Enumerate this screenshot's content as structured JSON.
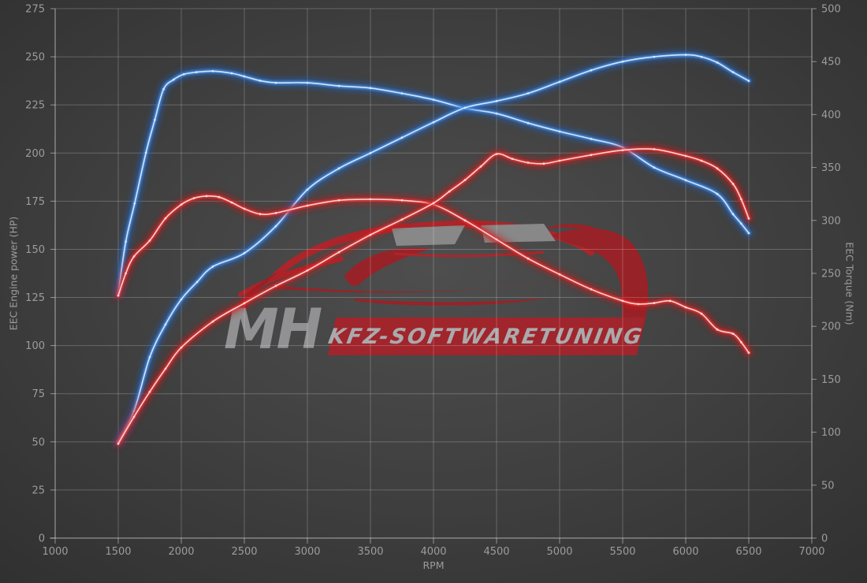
{
  "colors": {
    "background_center": "#4e4e4e",
    "background_edge": "#2d2d2d",
    "grid": "rgba(255,255,255,0.22)",
    "axis": "rgba(255,255,255,0.45)",
    "tick_label": "#9c9c9c",
    "axis_title": "#9c9c9c",
    "blue_glow": "#1e62c8",
    "blue_line": "#4a8fe0",
    "blue_core": "#d9eaff",
    "red_glow": "#c81616",
    "red_line": "#e23434",
    "red_core": "#ffdada"
  },
  "watermark": {
    "mh_text": "MH",
    "band_text": "KFZ-SOFTWARETUNING",
    "mh_color": "#98989a",
    "band_color": "#a8232a",
    "band_text_color": "#b3b3b5",
    "car_body_color": "#9e2026",
    "car_stroke_color": "#b42329",
    "window_color": "#8e8e8e"
  },
  "chart_data": {
    "type": "line",
    "title": "",
    "xlabel": "RPM",
    "ylabel_left": "EEC Engine power (HP)",
    "ylabel_right": "EEC Torque (Nm)",
    "x_range": [
      1000,
      7000
    ],
    "x_ticks": [
      1000,
      1500,
      2000,
      2500,
      3000,
      3500,
      4000,
      4500,
      5000,
      5500,
      6000,
      6500,
      7000
    ],
    "y_left_range": [
      0,
      275
    ],
    "y_left_ticks": [
      0,
      25,
      50,
      75,
      100,
      125,
      150,
      175,
      200,
      225,
      250,
      275
    ],
    "y_right_range": [
      0,
      500
    ],
    "y_right_ticks": [
      0,
      50,
      100,
      150,
      200,
      250,
      300,
      350,
      400,
      450,
      500
    ],
    "grid": true,
    "legend": "none",
    "series": [
      {
        "name": "blue_torque",
        "axis": "right",
        "unit": "Nm",
        "color_key": "blue",
        "points": [
          [
            1500,
            231
          ],
          [
            1560,
            280
          ],
          [
            1630,
            316
          ],
          [
            1720,
            364
          ],
          [
            1790,
            395
          ],
          [
            1860,
            424
          ],
          [
            1940,
            433
          ],
          [
            2020,
            438
          ],
          [
            2120,
            440
          ],
          [
            2250,
            441
          ],
          [
            2400,
            439
          ],
          [
            2500,
            436
          ],
          [
            2625,
            432
          ],
          [
            2750,
            430
          ],
          [
            3000,
            430
          ],
          [
            3250,
            427
          ],
          [
            3500,
            425
          ],
          [
            3750,
            420
          ],
          [
            4000,
            414
          ],
          [
            4250,
            406
          ],
          [
            4500,
            401
          ],
          [
            4750,
            392
          ],
          [
            5000,
            384
          ],
          [
            5250,
            377
          ],
          [
            5500,
            369
          ],
          [
            5750,
            350
          ],
          [
            6000,
            338
          ],
          [
            6250,
            325
          ],
          [
            6375,
            306
          ],
          [
            6440,
            297
          ],
          [
            6500,
            288
          ]
        ]
      },
      {
        "name": "blue_power",
        "axis": "left",
        "unit": "HP",
        "color_key": "blue",
        "points": [
          [
            1500,
            50
          ],
          [
            1625,
            66
          ],
          [
            1750,
            94
          ],
          [
            1875,
            111
          ],
          [
            2000,
            124
          ],
          [
            2125,
            133
          ],
          [
            2250,
            141
          ],
          [
            2500,
            148
          ],
          [
            2750,
            162
          ],
          [
            3000,
            181
          ],
          [
            3250,
            192
          ],
          [
            3500,
            200
          ],
          [
            3750,
            208
          ],
          [
            4000,
            216
          ],
          [
            4250,
            223.5
          ],
          [
            4500,
            227
          ],
          [
            4750,
            231
          ],
          [
            5000,
            237
          ],
          [
            5250,
            243
          ],
          [
            5500,
            247.5
          ],
          [
            5750,
            250
          ],
          [
            6000,
            251
          ],
          [
            6125,
            250
          ],
          [
            6250,
            247
          ],
          [
            6375,
            242
          ],
          [
            6500,
            237.5
          ]
        ]
      },
      {
        "name": "red_torque",
        "axis": "right",
        "unit": "Nm",
        "color_key": "red",
        "points": [
          [
            1500,
            229
          ],
          [
            1560,
            250
          ],
          [
            1625,
            266
          ],
          [
            1750,
            281
          ],
          [
            1875,
            302
          ],
          [
            2000,
            315
          ],
          [
            2100,
            321
          ],
          [
            2200,
            323
          ],
          [
            2300,
            322
          ],
          [
            2400,
            317
          ],
          [
            2500,
            311
          ],
          [
            2625,
            306
          ],
          [
            2750,
            307
          ],
          [
            3000,
            314
          ],
          [
            3250,
            319
          ],
          [
            3500,
            320
          ],
          [
            3750,
            319
          ],
          [
            4000,
            315
          ],
          [
            4250,
            300
          ],
          [
            4500,
            282
          ],
          [
            4750,
            264
          ],
          [
            5000,
            249
          ],
          [
            5250,
            235
          ],
          [
            5500,
            224
          ],
          [
            5625,
            221
          ],
          [
            5750,
            222
          ],
          [
            5875,
            224
          ],
          [
            6000,
            218
          ],
          [
            6125,
            212
          ],
          [
            6250,
            197
          ],
          [
            6375,
            193
          ],
          [
            6440,
            185
          ],
          [
            6500,
            175
          ]
        ]
      },
      {
        "name": "red_power",
        "axis": "left",
        "unit": "HP",
        "color_key": "red",
        "points": [
          [
            1500,
            49
          ],
          [
            1625,
            63
          ],
          [
            1750,
            76
          ],
          [
            1875,
            88
          ],
          [
            2000,
            99
          ],
          [
            2250,
            112.5
          ],
          [
            2500,
            122
          ],
          [
            2750,
            131
          ],
          [
            3000,
            139
          ],
          [
            3250,
            148.5
          ],
          [
            3500,
            157.5
          ],
          [
            3750,
            165.5
          ],
          [
            4000,
            174
          ],
          [
            4125,
            180
          ],
          [
            4250,
            186
          ],
          [
            4375,
            193
          ],
          [
            4500,
            199.5
          ],
          [
            4625,
            197
          ],
          [
            4750,
            195
          ],
          [
            4875,
            194.5
          ],
          [
            5000,
            196
          ],
          [
            5250,
            199
          ],
          [
            5500,
            201.5
          ],
          [
            5750,
            202
          ],
          [
            6000,
            198.5
          ],
          [
            6125,
            196
          ],
          [
            6250,
            192
          ],
          [
            6375,
            184
          ],
          [
            6440,
            176
          ],
          [
            6500,
            166
          ]
        ]
      }
    ]
  }
}
